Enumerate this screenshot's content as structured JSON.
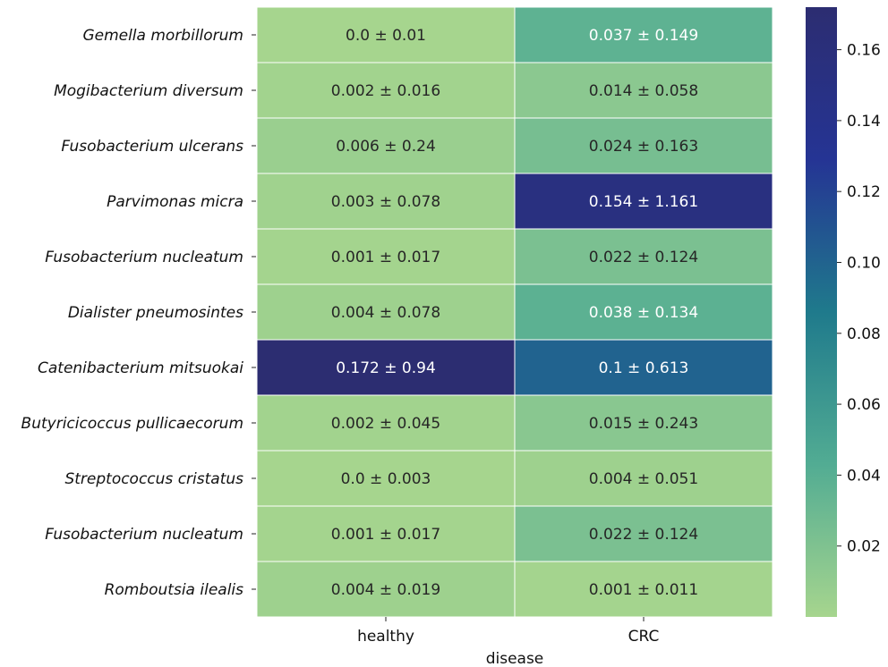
{
  "chart_data": {
    "type": "heatmap",
    "title": "",
    "xlabel": "disease",
    "ylabel": "",
    "columns": [
      "healthy",
      "CRC"
    ],
    "rows": [
      "Gemella morbillorum",
      "Mogibacterium diversum",
      "Fusobacterium ulcerans",
      "Parvimonas micra",
      "Fusobacterium nucleatum",
      "Dialister pneumosintes",
      "Catenibacterium mitsuokai",
      "Butyricicoccus pullicaecorum",
      "Streptococcus cristatus",
      "Fusobacterium nucleatum",
      "Romboutsia ilealis"
    ],
    "values": [
      [
        0.0,
        0.037
      ],
      [
        0.002,
        0.014
      ],
      [
        0.006,
        0.024
      ],
      [
        0.003,
        0.154
      ],
      [
        0.001,
        0.022
      ],
      [
        0.004,
        0.038
      ],
      [
        0.172,
        0.1
      ],
      [
        0.002,
        0.015
      ],
      [
        0.0,
        0.004
      ],
      [
        0.001,
        0.022
      ],
      [
        0.004,
        0.001
      ]
    ],
    "annotations": [
      [
        "0.0 ± 0.01",
        "0.037 ± 0.149"
      ],
      [
        "0.002 ± 0.016",
        "0.014 ± 0.058"
      ],
      [
        "0.006 ± 0.24",
        "0.024 ± 0.163"
      ],
      [
        "0.003 ± 0.078",
        "0.154 ± 1.161"
      ],
      [
        "0.001 ± 0.017",
        "0.022 ± 0.124"
      ],
      [
        "0.004 ± 0.078",
        "0.038 ± 0.134"
      ],
      [
        "0.172 ± 0.94",
        "0.1 ± 0.613"
      ],
      [
        "0.002 ± 0.045",
        "0.015 ± 0.243"
      ],
      [
        "0.0 ± 0.003",
        "0.004 ± 0.051"
      ],
      [
        "0.001 ± 0.017",
        "0.022 ± 0.124"
      ],
      [
        "0.004 ± 0.019",
        "0.001 ± 0.011"
      ]
    ],
    "colorbar": {
      "min": 0.0,
      "max": 0.172,
      "ticks": [
        0.02,
        0.04,
        0.06,
        0.08,
        0.1,
        0.12,
        0.14,
        0.16
      ],
      "tick_labels": [
        "0.02",
        "0.04",
        "0.06",
        "0.08",
        "0.10",
        "0.12",
        "0.14",
        "0.16"
      ],
      "colormap": "crest",
      "colors": [
        "#a6d58e",
        "#52ac93",
        "#1f7a8c",
        "#253494",
        "#2c2d71"
      ]
    }
  }
}
